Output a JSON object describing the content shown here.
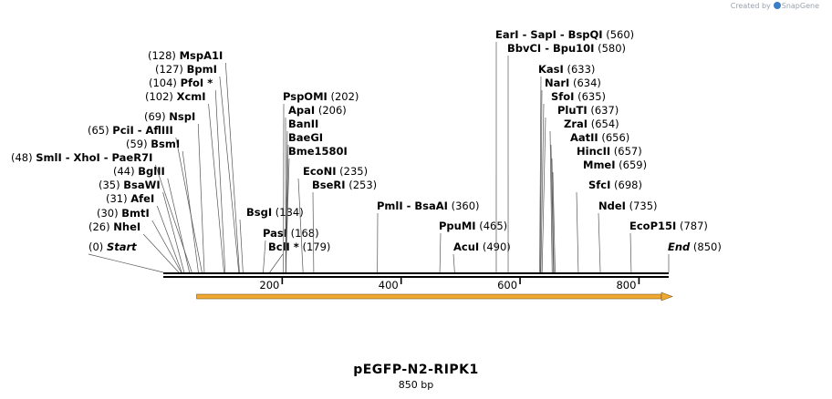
{
  "credit": {
    "prefix": "Created by",
    "brand": "SnapGene"
  },
  "plasmid": {
    "name": "pEGFP-N2-RIPK1",
    "size_label": "850 bp",
    "length": 850
  },
  "ticks": [
    200,
    400,
    600,
    800
  ],
  "feature_arrow": {
    "start": 56,
    "end": 850,
    "direction": "forward",
    "color": "#f0a830"
  },
  "labels": [
    {
      "names": [
        "Start"
      ],
      "pos": "(0)",
      "italic": true,
      "site": 0,
      "pos_first": true
    },
    {
      "names": [
        "NheI"
      ],
      "pos": "(26)",
      "site": 26,
      "pos_first": true
    },
    {
      "names": [
        "BmtI"
      ],
      "pos": "(30)",
      "site": 30,
      "pos_first": true
    },
    {
      "names": [
        "AfeI"
      ],
      "pos": "(31)",
      "site": 31,
      "pos_first": true
    },
    {
      "names": [
        "BsaWI"
      ],
      "pos": "(35)",
      "site": 35,
      "pos_first": true
    },
    {
      "names": [
        "BglII"
      ],
      "pos": "(44)",
      "site": 44,
      "pos_first": true
    },
    {
      "names": [
        "SmlI",
        "XhoI",
        "PaeR7I"
      ],
      "pos": "(48)",
      "site": 48,
      "pos_first": true
    },
    {
      "names": [
        "BsmI"
      ],
      "pos": "(59)",
      "site": 59,
      "pos_first": true
    },
    {
      "names": [
        "PciI",
        "AflIII"
      ],
      "pos": "(65)",
      "site": 65,
      "pos_first": true
    },
    {
      "names": [
        "NspI"
      ],
      "pos": "(69)",
      "site": 69,
      "pos_first": true
    },
    {
      "names": [
        "XcmI"
      ],
      "pos": "(102)",
      "site": 102,
      "pos_first": true
    },
    {
      "names": [
        "PfoI *"
      ],
      "pos": "(104)",
      "site": 104,
      "pos_first": true
    },
    {
      "names": [
        "BpmI"
      ],
      "pos": "(127)",
      "site": 127,
      "pos_first": true
    },
    {
      "names": [
        "MspA1I"
      ],
      "pos": "(128)",
      "site": 128,
      "pos_first": true
    },
    {
      "names": [
        "BsgI"
      ],
      "pos": "(134)",
      "site": 134
    },
    {
      "names": [
        "PasI"
      ],
      "pos": "(168)",
      "site": 168
    },
    {
      "names": [
        "BclI *"
      ],
      "pos": "(179)",
      "site": 179
    },
    {
      "names": [
        "PspOMI"
      ],
      "pos": "(202)",
      "site": 202
    },
    {
      "names": [
        "ApaI"
      ],
      "pos": "(206)",
      "site": 206
    },
    {
      "names": [
        "BanII"
      ],
      "pos": "",
      "site": 206
    },
    {
      "names": [
        "BaeGI"
      ],
      "pos": "",
      "site": 206
    },
    {
      "names": [
        "Bme1580I"
      ],
      "pos": "",
      "site": 206
    },
    {
      "names": [
        "EcoNI"
      ],
      "pos": "(235)",
      "site": 235
    },
    {
      "names": [
        "BseRI"
      ],
      "pos": "(253)",
      "site": 253
    },
    {
      "names": [
        "PmlI",
        "BsaAI"
      ],
      "pos": "(360)",
      "site": 360
    },
    {
      "names": [
        "PpuMI"
      ],
      "pos": "(465)",
      "site": 465
    },
    {
      "names": [
        "AcuI"
      ],
      "pos": "(490)",
      "site": 490
    },
    {
      "names": [
        "EarI",
        "SapI",
        "BspQI"
      ],
      "pos": "(560)",
      "site": 560
    },
    {
      "names": [
        "BbvCI",
        "Bpu10I"
      ],
      "pos": "(580)",
      "site": 580
    },
    {
      "names": [
        "KasI"
      ],
      "pos": "(633)",
      "site": 633
    },
    {
      "names": [
        "NarI"
      ],
      "pos": "(634)",
      "site": 634
    },
    {
      "names": [
        "SfoI"
      ],
      "pos": "(635)",
      "site": 635
    },
    {
      "names": [
        "PluTI"
      ],
      "pos": "(637)",
      "site": 637
    },
    {
      "names": [
        "ZraI"
      ],
      "pos": "(654)",
      "site": 654
    },
    {
      "names": [
        "AatII"
      ],
      "pos": "(656)",
      "site": 656
    },
    {
      "names": [
        "HincII"
      ],
      "pos": "(657)",
      "site": 657
    },
    {
      "names": [
        "MmeI"
      ],
      "pos": "(659)",
      "site": 659
    },
    {
      "names": [
        "SfcI"
      ],
      "pos": "(698)",
      "site": 698
    },
    {
      "names": [
        "NdeI"
      ],
      "pos": "(735)",
      "site": 735
    },
    {
      "names": [
        "EcoP15I"
      ],
      "pos": "(787)",
      "site": 787
    },
    {
      "names": [
        "End"
      ],
      "pos": "(850)",
      "italic": true,
      "site": 850
    }
  ]
}
